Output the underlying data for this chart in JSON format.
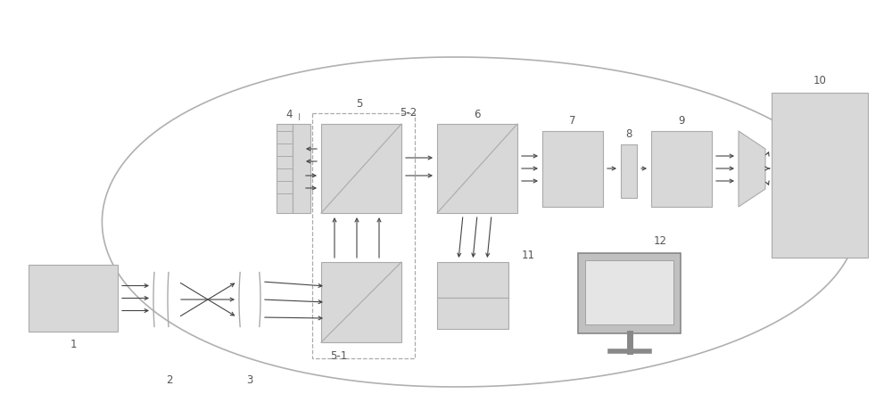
{
  "bg_color": "#ffffff",
  "box_fill": "#d8d8d8",
  "box_edge": "#aaaaaa",
  "line_color": "#aaaaaa",
  "arrow_color": "#444444",
  "label_color": "#555555",
  "label_fontsize": 8.5
}
